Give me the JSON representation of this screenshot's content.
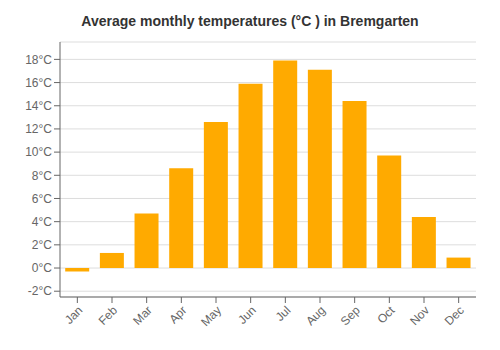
{
  "chart_data": {
    "type": "bar",
    "title": "Average monthly temperatures (°C ) in Bremgarten",
    "categories": [
      "Jan",
      "Feb",
      "Mar",
      "Apr",
      "May",
      "Jun",
      "Jul",
      "Aug",
      "Sep",
      "Oct",
      "Nov",
      "Dec"
    ],
    "values": [
      -0.3,
      1.3,
      4.7,
      8.6,
      12.6,
      15.9,
      17.9,
      17.1,
      14.4,
      9.7,
      4.4,
      0.9
    ],
    "color": "#FFAA00",
    "ylim": [
      -2.5,
      19.5
    ],
    "yticks": [
      {
        "value": -2,
        "label": "-2°C"
      },
      {
        "value": 0,
        "label": "0°C"
      },
      {
        "value": 2,
        "label": "2°C"
      },
      {
        "value": 4,
        "label": "4°C"
      },
      {
        "value": 6,
        "label": "6°C"
      },
      {
        "value": 8,
        "label": "8°C"
      },
      {
        "value": 10,
        "label": "10°C"
      },
      {
        "value": 12,
        "label": "12°C"
      },
      {
        "value": 14,
        "label": "14°C"
      },
      {
        "value": 16,
        "label": "16°C"
      },
      {
        "value": 18,
        "label": "18°C"
      }
    ],
    "grid": true
  }
}
